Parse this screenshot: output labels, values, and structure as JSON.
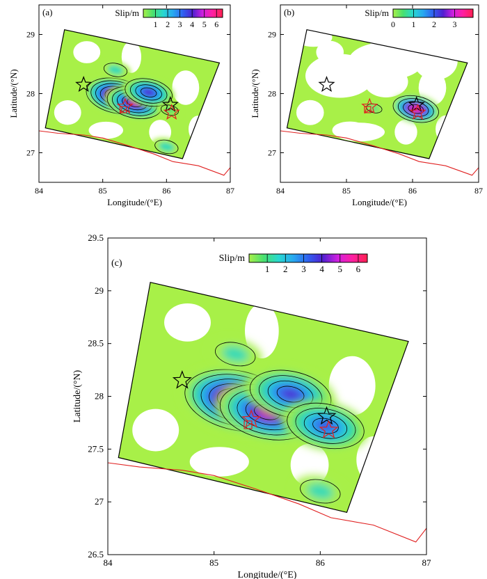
{
  "figure": {
    "colors": {
      "background_slip": "#a8f048",
      "no_data": "#ffffff",
      "coastline": "#e02020",
      "contour": "#000000",
      "frame": "#000000",
      "epicenter_black": "#000000",
      "epicenter_red": "#e02020"
    },
    "colormap": [
      "#a8f048",
      "#48e070",
      "#28d8d0",
      "#28a8f0",
      "#3060f0",
      "#5020d0",
      "#d020e0",
      "#ff20a0",
      "#ff2050"
    ]
  },
  "chart_data": [
    {
      "type": "heatmap",
      "panel_label": "(a)",
      "title": "",
      "xlabel": "Longitude/(°E)",
      "ylabel": "Latitude/(°N)",
      "xlim": [
        84,
        87
      ],
      "ylim": [
        26.5,
        29.5
      ],
      "xticks": [
        "84",
        "85",
        "86",
        "87"
      ],
      "yticks": [
        "27",
        "28",
        "29"
      ],
      "colorbar": {
        "label": "Slip/m",
        "ticks": [
          "1",
          "2",
          "3",
          "4",
          "5",
          "6"
        ],
        "range": [
          0,
          6.5
        ]
      },
      "grid": false,
      "fault_plane": [
        [
          84.1,
          27.42
        ],
        [
          84.4,
          29.08
        ],
        [
          86.83,
          28.52
        ],
        [
          86.25,
          26.9
        ]
      ],
      "slip_patches": [
        {
          "lon": 85.22,
          "lat": 27.96,
          "slip": 6.3
        },
        {
          "lon": 85.5,
          "lat": 27.85,
          "slip": 5.2
        },
        {
          "lon": 85.72,
          "lat": 28.02,
          "slip": 4.0
        },
        {
          "lon": 86.05,
          "lat": 27.72,
          "slip": 0.8
        },
        {
          "lon": 85.2,
          "lat": 28.4,
          "slip": 1.4
        },
        {
          "lon": 86.0,
          "lat": 27.1,
          "slip": 1.4
        }
      ],
      "epicenters": [
        {
          "lon": 84.7,
          "lat": 28.15,
          "color": "black"
        },
        {
          "lon": 86.06,
          "lat": 27.81,
          "color": "black"
        },
        {
          "lon": 85.35,
          "lat": 27.78,
          "color": "red"
        },
        {
          "lon": 86.08,
          "lat": 27.68,
          "color": "red"
        }
      ],
      "squares": [
        {
          "lon": 85.32,
          "lat": 27.73,
          "color": "red"
        }
      ],
      "coastline": [
        [
          84,
          27.37
        ],
        [
          84.3,
          27.33
        ],
        [
          84.7,
          27.3
        ],
        [
          85.0,
          27.25
        ],
        [
          85.4,
          27.12
        ],
        [
          85.8,
          26.98
        ],
        [
          86.1,
          26.85
        ],
        [
          86.5,
          26.78
        ],
        [
          86.9,
          26.62
        ],
        [
          87,
          26.75
        ]
      ]
    },
    {
      "type": "heatmap",
      "panel_label": "(b)",
      "title": "",
      "xlabel": "Longitude/(°E)",
      "ylabel": "Latitude/(°N)",
      "xlim": [
        84,
        87
      ],
      "ylim": [
        26.5,
        29.5
      ],
      "xticks": [
        "84",
        "85",
        "86",
        "87"
      ],
      "yticks": [
        "27",
        "28",
        "29"
      ],
      "colorbar": {
        "label": "Slip/m",
        "ticks": [
          "0",
          "1",
          "2",
          "3"
        ],
        "range": [
          0,
          3.9
        ]
      },
      "grid": false,
      "fault_plane": [
        [
          84.1,
          27.42
        ],
        [
          84.4,
          29.08
        ],
        [
          86.83,
          28.52
        ],
        [
          86.25,
          26.9
        ]
      ],
      "slip_patches": [
        {
          "lon": 86.05,
          "lat": 27.74,
          "slip": 3.6
        },
        {
          "lon": 85.42,
          "lat": 27.75,
          "slip": 0.6
        }
      ],
      "epicenters": [
        {
          "lon": 84.7,
          "lat": 28.15,
          "color": "black"
        },
        {
          "lon": 86.06,
          "lat": 27.81,
          "color": "black"
        },
        {
          "lon": 85.35,
          "lat": 27.78,
          "color": "red"
        },
        {
          "lon": 86.08,
          "lat": 27.68,
          "color": "red"
        }
      ],
      "squares": [
        {
          "lon": 85.32,
          "lat": 27.73,
          "color": "red"
        }
      ],
      "coastline": [
        [
          84,
          27.37
        ],
        [
          84.3,
          27.33
        ],
        [
          84.7,
          27.3
        ],
        [
          85.0,
          27.25
        ],
        [
          85.4,
          27.12
        ],
        [
          85.8,
          26.98
        ],
        [
          86.1,
          26.85
        ],
        [
          86.5,
          26.78
        ],
        [
          86.9,
          26.62
        ],
        [
          87,
          26.75
        ]
      ]
    },
    {
      "type": "heatmap",
      "panel_label": "(c)",
      "title": "",
      "xlabel": "Longitude/(°E)",
      "ylabel": "Latitude/(°N)",
      "xlim": [
        84,
        87
      ],
      "ylim": [
        26.5,
        29.5
      ],
      "xticks": [
        "84",
        "85",
        "86",
        "87"
      ],
      "yticks": [
        "26.5",
        "27",
        "27.5",
        "28",
        "28.5",
        "29",
        "29.5"
      ],
      "colorbar": {
        "label": "Slip/m",
        "ticks": [
          "1",
          "2",
          "3",
          "4",
          "5",
          "6"
        ],
        "range": [
          0,
          6.5
        ]
      },
      "grid": false,
      "fault_plane": [
        [
          84.1,
          27.42
        ],
        [
          84.4,
          29.08
        ],
        [
          86.83,
          28.52
        ],
        [
          86.25,
          26.9
        ]
      ],
      "slip_patches": [
        {
          "lon": 85.22,
          "lat": 27.96,
          "slip": 6.3
        },
        {
          "lon": 85.5,
          "lat": 27.85,
          "slip": 5.2
        },
        {
          "lon": 85.72,
          "lat": 28.02,
          "slip": 4.0
        },
        {
          "lon": 86.05,
          "lat": 27.72,
          "slip": 3.6
        },
        {
          "lon": 85.2,
          "lat": 28.4,
          "slip": 1.4
        },
        {
          "lon": 86.0,
          "lat": 27.1,
          "slip": 1.4
        }
      ],
      "epicenters": [
        {
          "lon": 84.7,
          "lat": 28.15,
          "color": "black"
        },
        {
          "lon": 86.06,
          "lat": 27.81,
          "color": "black"
        },
        {
          "lon": 85.35,
          "lat": 27.78,
          "color": "red"
        },
        {
          "lon": 86.08,
          "lat": 27.68,
          "color": "red"
        }
      ],
      "squares": [
        {
          "lon": 85.32,
          "lat": 27.73,
          "color": "red"
        }
      ],
      "coastline": [
        [
          84,
          27.37
        ],
        [
          84.3,
          27.33
        ],
        [
          84.7,
          27.3
        ],
        [
          85.0,
          27.25
        ],
        [
          85.4,
          27.12
        ],
        [
          85.8,
          26.98
        ],
        [
          86.1,
          26.85
        ],
        [
          86.5,
          26.78
        ],
        [
          86.9,
          26.62
        ],
        [
          87,
          26.75
        ]
      ]
    }
  ]
}
